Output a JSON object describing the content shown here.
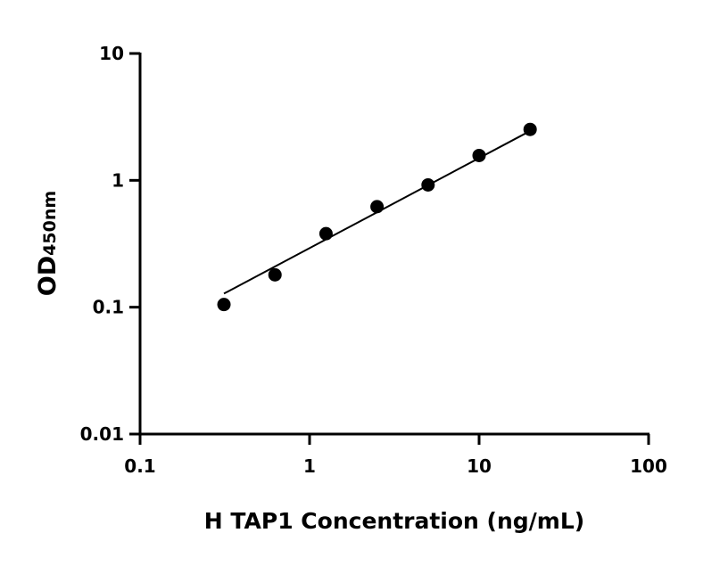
{
  "chart_data": {
    "type": "scatter",
    "title": "",
    "xlabel": "H TAP1 Concentration (ng/mL)",
    "ylabel_main": "OD",
    "ylabel_sub": "450nm",
    "x_scale": "log",
    "y_scale": "log",
    "xlim": [
      0.1,
      100
    ],
    "ylim": [
      0.01,
      10
    ],
    "x_ticks": [
      {
        "v": 0.1,
        "label": "0.1"
      },
      {
        "v": 1,
        "label": "1"
      },
      {
        "v": 10,
        "label": "10"
      },
      {
        "v": 100,
        "label": "100"
      }
    ],
    "y_ticks": [
      {
        "v": 0.01,
        "label": "0.01"
      },
      {
        "v": 0.1,
        "label": "0.1"
      },
      {
        "v": 1,
        "label": "1"
      },
      {
        "v": 10,
        "label": "10"
      }
    ],
    "grid": false,
    "points": [
      {
        "x": 0.3125,
        "y": 0.105
      },
      {
        "x": 0.625,
        "y": 0.18
      },
      {
        "x": 1.25,
        "y": 0.38
      },
      {
        "x": 2.5,
        "y": 0.62
      },
      {
        "x": 5,
        "y": 0.92
      },
      {
        "x": 10,
        "y": 1.57
      },
      {
        "x": 20,
        "y": 2.52
      }
    ],
    "fit_line": [
      {
        "x": 0.3125,
        "y": 0.128
      },
      {
        "x": 20,
        "y": 2.45
      }
    ],
    "colors": {
      "points": "#000000",
      "line": "#000000"
    }
  }
}
